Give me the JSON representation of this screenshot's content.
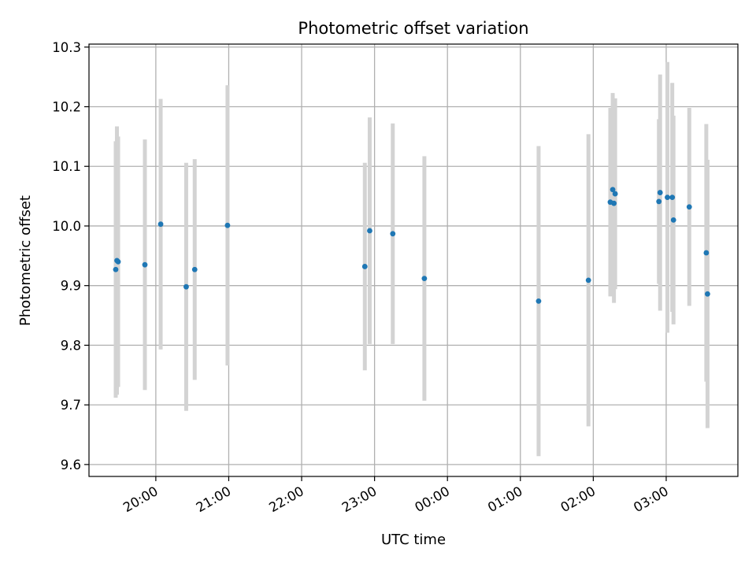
{
  "chart_data": {
    "type": "scatter",
    "title": "Photometric offset variation",
    "xlabel": "UTC time",
    "ylabel": "Photometric offset",
    "x_unit": "hours",
    "xlim": [
      "19:05",
      "03:59"
    ],
    "ylim": [
      9.58,
      10.305
    ],
    "grid": true,
    "x_tick_labels": [
      "20:00",
      "21:00",
      "22:00",
      "23:00",
      "00:00",
      "01:00",
      "02:00",
      "03:00"
    ],
    "y_tick_labels": [
      "9.6",
      "9.7",
      "9.8",
      "9.9",
      "10.0",
      "10.1",
      "10.2",
      "10.3"
    ],
    "y_ticks": [
      9.6,
      9.7,
      9.8,
      9.9,
      10.0,
      10.1,
      10.2,
      10.3
    ],
    "point_color": "#1f77b4",
    "errorbar_color": "#d3d3d3",
    "series": [
      {
        "points": [
          {
            "x": "19:27",
            "y": 9.927,
            "yerr": 0.215
          },
          {
            "x": "19:28",
            "y": 9.942,
            "yerr": 0.225
          },
          {
            "x": "19:29",
            "y": 9.94,
            "yerr": 0.21
          },
          {
            "x": "19:51",
            "y": 9.935,
            "yerr": 0.21
          },
          {
            "x": "20:04",
            "y": 10.003,
            "yerr": 0.21
          },
          {
            "x": "20:25",
            "y": 9.898,
            "yerr": 0.208
          },
          {
            "x": "20:32",
            "y": 9.927,
            "yerr": 0.185
          },
          {
            "x": "20:59",
            "y": 10.001,
            "yerr": 0.235
          },
          {
            "x": "22:52",
            "y": 9.932,
            "yerr": 0.174
          },
          {
            "x": "22:56",
            "y": 9.992,
            "yerr": 0.19
          },
          {
            "x": "23:15",
            "y": 9.987,
            "yerr": 0.185
          },
          {
            "x": "23:41",
            "y": 9.912,
            "yerr": 0.205
          },
          {
            "x": "01:15",
            "y": 9.874,
            "yerr": 0.26
          },
          {
            "x": "01:56",
            "y": 9.909,
            "yerr": 0.245
          },
          {
            "x": "02:14",
            "y": 10.04,
            "yerr": 0.158
          },
          {
            "x": "02:16",
            "y": 10.061,
            "yerr": 0.162
          },
          {
            "x": "02:17",
            "y": 10.038,
            "yerr": 0.167
          },
          {
            "x": "02:18",
            "y": 10.054,
            "yerr": 0.16
          },
          {
            "x": "02:54",
            "y": 10.041,
            "yerr": 0.138
          },
          {
            "x": "02:55",
            "y": 10.056,
            "yerr": 0.198
          },
          {
            "x": "03:01",
            "y": 10.048,
            "yerr": 0.227
          },
          {
            "x": "03:05",
            "y": 10.048,
            "yerr": 0.192
          },
          {
            "x": "03:06",
            "y": 10.01,
            "yerr": 0.175
          },
          {
            "x": "03:19",
            "y": 10.032,
            "yerr": 0.166
          },
          {
            "x": "03:33",
            "y": 9.955,
            "yerr": 0.216
          },
          {
            "x": "03:34",
            "y": 9.886,
            "yerr": 0.225
          }
        ]
      }
    ]
  }
}
